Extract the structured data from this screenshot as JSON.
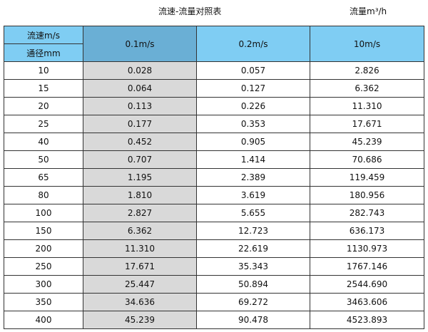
{
  "title": "流速-流量对照表",
  "unit": "流量m³/h",
  "header": {
    "speed_label": "流速m/s",
    "diameter_label": "通径mm",
    "columns": [
      "0.1m/s",
      "0.2m/s",
      "10m/s"
    ]
  },
  "rows": [
    [
      "10",
      "0.028",
      "0.057",
      "2.826"
    ],
    [
      "15",
      "0.064",
      "0.127",
      "6.362"
    ],
    [
      "20",
      "0.113",
      "0.226",
      "11.310"
    ],
    [
      "25",
      "0.177",
      "0.353",
      "17.671"
    ],
    [
      "40",
      "0.452",
      "0.905",
      "45.239"
    ],
    [
      "50",
      "0.707",
      "1.414",
      "70.686"
    ],
    [
      "65",
      "1.195",
      "2.389",
      "119.459"
    ],
    [
      "80",
      "1.810",
      "3.619",
      "180.956"
    ],
    [
      "100",
      "2.827",
      "5.655",
      "282.743"
    ],
    [
      "150",
      "6.362",
      "12.723",
      "636.173"
    ],
    [
      "200",
      "11.310",
      "22.619",
      "1130.973"
    ],
    [
      "250",
      "17.671",
      "35.343",
      "1767.146"
    ],
    [
      "300",
      "25.447",
      "50.894",
      "2544.690"
    ],
    [
      "350",
      "34.636",
      "69.272",
      "3463.606"
    ],
    [
      "400",
      "45.239",
      "90.478",
      "4523.893"
    ]
  ],
  "colors": {
    "header": "#7fcdf3",
    "header_highlight": "#6aafd5",
    "column_highlight": "#d9d9d9"
  }
}
